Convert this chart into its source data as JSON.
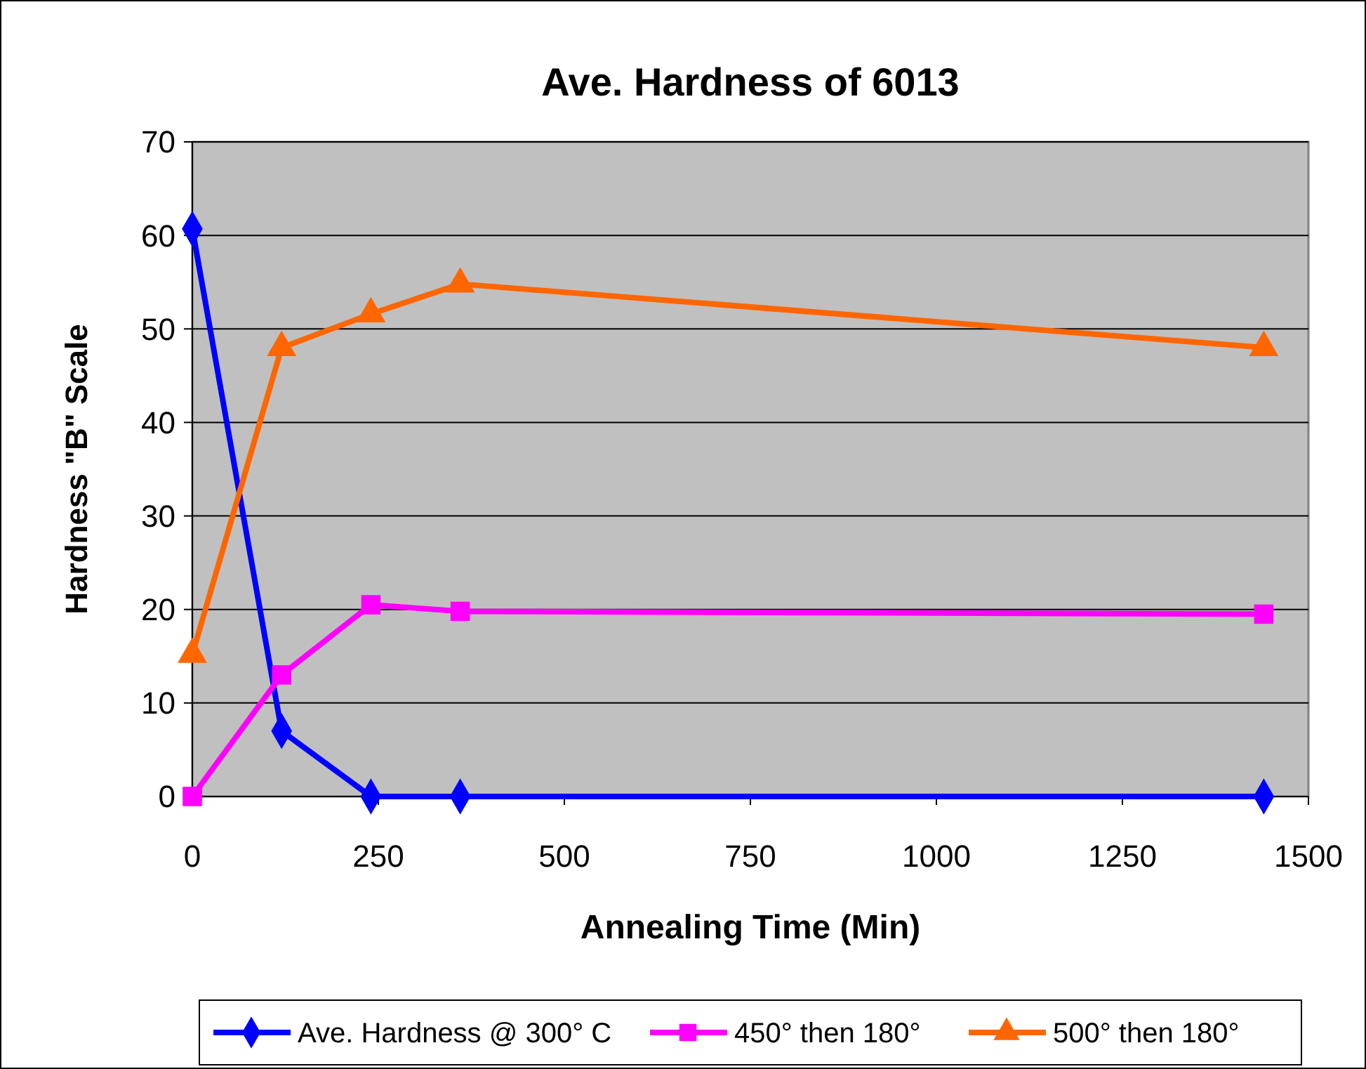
{
  "chart_data": {
    "type": "line",
    "title": "Ave. Hardness of 6013",
    "xlabel": "Annealing Time (Min)",
    "ylabel": "Hardness \"B\" Scale",
    "x": [
      0,
      120,
      240,
      360,
      1440
    ],
    "series": [
      {
        "name": "Ave. Hardness @ 300° C",
        "color": "#0000ff",
        "marker": "diamond",
        "values": [
          60.7,
          7,
          0,
          0,
          0
        ]
      },
      {
        "name": "450° then 180°",
        "color": "#ff00ff",
        "marker": "square",
        "values": [
          0,
          13,
          20.5,
          19.8,
          19.5
        ]
      },
      {
        "name": "500° then 180°",
        "color": "#ff6600",
        "marker": "triangle",
        "values": [
          15.2,
          48,
          51.6,
          54.8,
          48
        ]
      }
    ],
    "xlim": [
      0,
      1500
    ],
    "xticks": [
      0,
      250,
      500,
      750,
      1000,
      1250,
      1500
    ],
    "ylim": [
      0,
      70
    ],
    "yticks": [
      0,
      10,
      20,
      30,
      40,
      50,
      60,
      70
    ],
    "grid": "y",
    "legend": "bottom",
    "line_style": "solid"
  }
}
